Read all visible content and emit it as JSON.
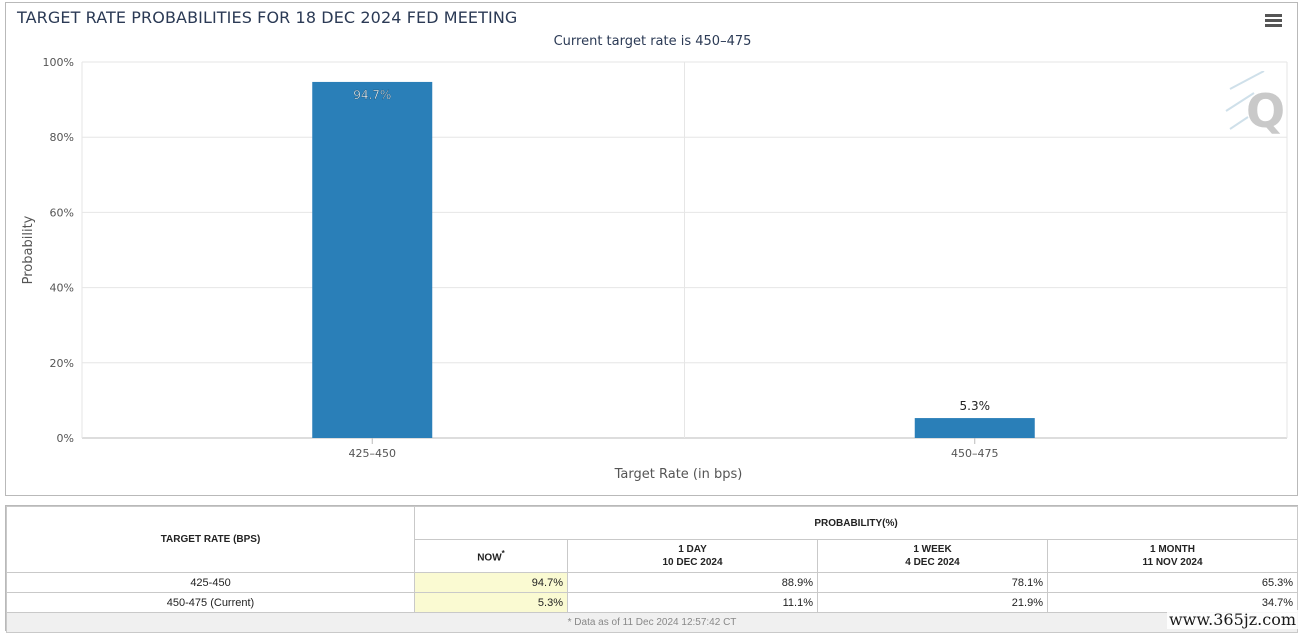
{
  "chart": {
    "title": "TARGET RATE PROBABILITIES FOR 18 DEC 2024 FED MEETING",
    "subtitle": "Current target rate is 450–475"
  },
  "chart_data": {
    "type": "bar",
    "categories": [
      "425–450",
      "450–475"
    ],
    "values": [
      94.7,
      5.3
    ],
    "data_labels": [
      "94.7%",
      "5.3%"
    ],
    "xlabel": "Target Rate (in bps)",
    "ylabel": "Probability",
    "ylim": [
      0,
      100
    ],
    "yticks": [
      0,
      20,
      40,
      60,
      80,
      100
    ],
    "ytick_labels": [
      "0%",
      "20%",
      "40%",
      "60%",
      "80%",
      "100%"
    ],
    "bar_color": "#2a7fb8",
    "grid": true,
    "legend": "none"
  },
  "icons": {
    "menu": "hamburger-menu-icon",
    "logo": "q-logo-icon"
  },
  "table": {
    "rate_header": "TARGET RATE (BPS)",
    "probability_header": "PROBABILITY(%)",
    "columns": [
      {
        "line1": "NOW",
        "line2": "",
        "star": "*"
      },
      {
        "line1": "1 DAY",
        "line2": "10 DEC 2024",
        "star": ""
      },
      {
        "line1": "1 WEEK",
        "line2": "4 DEC 2024",
        "star": ""
      },
      {
        "line1": "1 MONTH",
        "line2": "11 NOV 2024",
        "star": ""
      }
    ],
    "rows": [
      {
        "rate": "425-450",
        "values": [
          "94.7%",
          "88.9%",
          "78.1%",
          "65.3%"
        ]
      },
      {
        "rate": "450-475 (Current)",
        "values": [
          "5.3%",
          "11.1%",
          "21.9%",
          "34.7%"
        ]
      }
    ],
    "footnote": "* Data as of 11 Dec 2024 12:57:42 CT"
  },
  "watermark": "www.365jz.com"
}
